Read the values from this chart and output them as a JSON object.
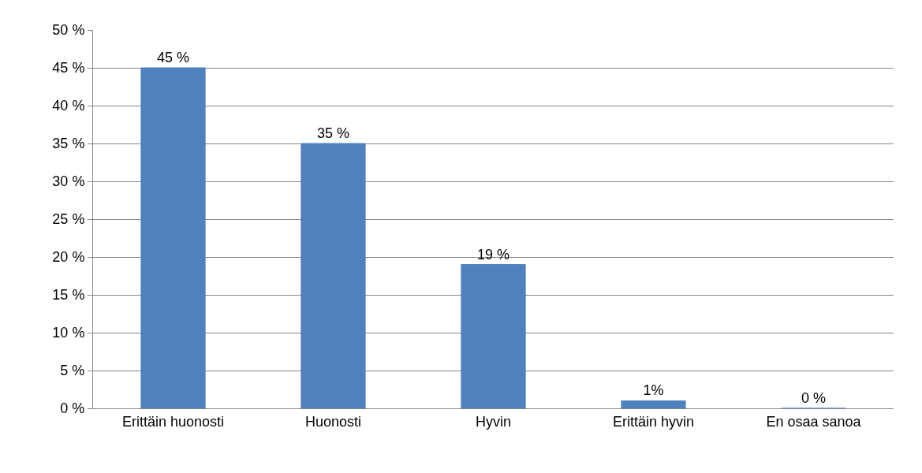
{
  "chart_data": {
    "type": "bar",
    "categories": [
      "Erittäin huonosti",
      "Huonosti",
      "Hyvin",
      "Erittäin hyvin",
      "En osaa sanoa"
    ],
    "values": [
      45,
      35,
      19,
      1,
      0
    ],
    "value_labels": [
      "45 %",
      "35 %",
      "19 %",
      "1%",
      "0 %"
    ],
    "color": "#4f81bd",
    "ylim": [
      0,
      50
    ],
    "yticks": [
      {
        "value": 0,
        "label": "0 %"
      },
      {
        "value": 5,
        "label": "5 %"
      },
      {
        "value": 10,
        "label": "10 %"
      },
      {
        "value": 15,
        "label": "15 %"
      },
      {
        "value": 20,
        "label": "20 %"
      },
      {
        "value": 25,
        "label": "25 %"
      },
      {
        "value": 30,
        "label": "30 %"
      },
      {
        "value": 35,
        "label": "35 %"
      },
      {
        "value": 40,
        "label": "40 %"
      },
      {
        "value": 45,
        "label": "45 %"
      },
      {
        "value": 50,
        "label": "50 %"
      }
    ],
    "grid": "y",
    "legend": false
  }
}
